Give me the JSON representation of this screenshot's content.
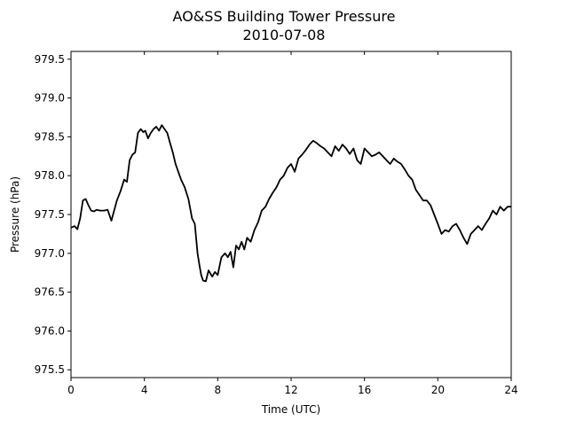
{
  "chart_data": {
    "type": "line",
    "title": "AO&SS Building Tower Pressure",
    "subtitle": "2010-07-08",
    "xlabel": "Time (UTC)",
    "ylabel": "Pressure (hPa)",
    "xlim": [
      0,
      24
    ],
    "ylim": [
      975.4,
      979.6
    ],
    "xticks": [
      0,
      4,
      8,
      12,
      16,
      20,
      24
    ],
    "xtick_labels": [
      "0",
      "4",
      "8",
      "12",
      "16",
      "20",
      "24"
    ],
    "yticks": [
      975.5,
      976.0,
      976.5,
      977.0,
      977.5,
      978.0,
      978.5,
      979.0,
      979.5
    ],
    "ytick_labels": [
      "975.5",
      "976.0",
      "976.5",
      "977.0",
      "977.5",
      "978.0",
      "978.5",
      "979.0",
      "979.5"
    ],
    "grid": false,
    "legend": "none",
    "series": [
      {
        "color": "#000000",
        "x": [
          0.0,
          0.2,
          0.35,
          0.5,
          0.65,
          0.8,
          0.95,
          1.1,
          1.25,
          1.4,
          1.6,
          1.8,
          2.0,
          2.2,
          2.35,
          2.5,
          2.7,
          2.9,
          3.05,
          3.2,
          3.35,
          3.5,
          3.65,
          3.8,
          3.95,
          4.05,
          4.2,
          4.35,
          4.5,
          4.65,
          4.8,
          4.95,
          5.1,
          5.25,
          5.4,
          5.55,
          5.7,
          5.85,
          6.0,
          6.2,
          6.4,
          6.6,
          6.75,
          6.9,
          7.0,
          7.1,
          7.2,
          7.35,
          7.5,
          7.7,
          7.85,
          8.0,
          8.2,
          8.4,
          8.55,
          8.7,
          8.85,
          9.0,
          9.15,
          9.3,
          9.45,
          9.6,
          9.8,
          10.0,
          10.2,
          10.4,
          10.6,
          10.8,
          11.0,
          11.2,
          11.4,
          11.6,
          11.8,
          12.0,
          12.2,
          12.4,
          12.6,
          12.8,
          13.0,
          13.2,
          13.4,
          13.6,
          13.8,
          14.0,
          14.2,
          14.4,
          14.6,
          14.8,
          15.0,
          15.2,
          15.4,
          15.6,
          15.8,
          16.0,
          16.2,
          16.4,
          16.6,
          16.8,
          17.0,
          17.2,
          17.4,
          17.6,
          17.8,
          18.0,
          18.2,
          18.4,
          18.6,
          18.8,
          19.0,
          19.2,
          19.4,
          19.6,
          19.8,
          20.0,
          20.2,
          20.4,
          20.6,
          20.8,
          21.0,
          21.2,
          21.4,
          21.6,
          21.8,
          22.0,
          22.2,
          22.4,
          22.6,
          22.8,
          23.0,
          23.2,
          23.4,
          23.6,
          23.8,
          24.0
        ],
        "y": [
          977.33,
          977.35,
          977.31,
          977.45,
          977.68,
          977.7,
          977.62,
          977.55,
          977.54,
          977.56,
          977.55,
          977.55,
          977.56,
          977.42,
          977.55,
          977.68,
          977.8,
          977.95,
          977.92,
          978.2,
          978.27,
          978.3,
          978.55,
          978.6,
          978.56,
          978.58,
          978.48,
          978.55,
          978.6,
          978.63,
          978.58,
          978.65,
          978.6,
          978.55,
          978.42,
          978.3,
          978.15,
          978.05,
          977.95,
          977.85,
          977.7,
          977.45,
          977.38,
          977.0,
          976.85,
          976.72,
          976.65,
          976.64,
          976.78,
          976.7,
          976.76,
          976.72,
          976.95,
          977.0,
          976.95,
          977.02,
          976.82,
          977.1,
          977.05,
          977.15,
          977.05,
          977.2,
          977.15,
          977.3,
          977.4,
          977.55,
          977.6,
          977.7,
          977.78,
          977.85,
          977.95,
          978.0,
          978.1,
          978.15,
          978.05,
          978.22,
          978.27,
          978.33,
          978.4,
          978.45,
          978.42,
          978.38,
          978.35,
          978.3,
          978.25,
          978.38,
          978.32,
          978.4,
          978.35,
          978.28,
          978.35,
          978.2,
          978.15,
          978.35,
          978.3,
          978.25,
          978.27,
          978.3,
          978.25,
          978.2,
          978.15,
          978.22,
          978.18,
          978.15,
          978.08,
          978.0,
          977.95,
          977.82,
          977.75,
          977.68,
          977.68,
          977.62,
          977.5,
          977.38,
          977.25,
          977.3,
          977.28,
          977.35,
          977.38,
          977.3,
          977.2,
          977.12,
          977.25,
          977.3,
          977.35,
          977.3,
          977.38,
          977.45,
          977.55,
          977.5,
          977.6,
          977.55,
          977.6,
          977.6
        ]
      }
    ]
  }
}
